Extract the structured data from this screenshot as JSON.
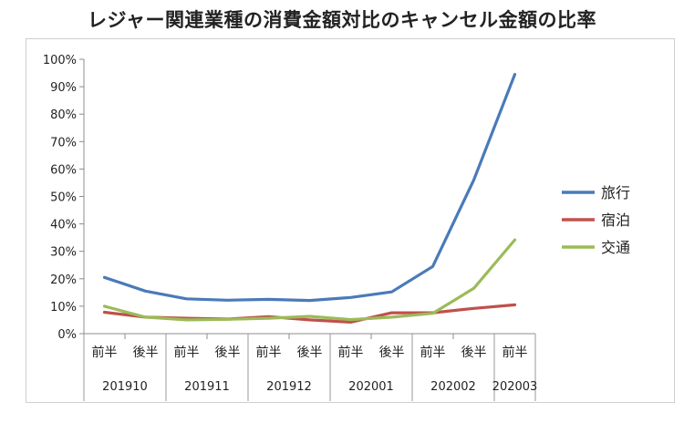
{
  "title": "レジャー関連業種の消費金額対比のキャンセル金額の比率",
  "colors": {
    "旅行": "#4a7ab8",
    "宿泊": "#c0504d",
    "交通": "#9bbb59",
    "axis": "#8c8c8c",
    "sep": "#9a9a9a"
  },
  "chart_data": {
    "type": "line",
    "title": "レジャー関連業種の消費金額対比のキャンセル金額の比率",
    "ylim": [
      0,
      100
    ],
    "y_ticks": [
      "0%",
      "10%",
      "20%",
      "30%",
      "40%",
      "50%",
      "60%",
      "70%",
      "80%",
      "90%",
      "100%"
    ],
    "half_labels": [
      "前半",
      "後半",
      "前半",
      "後半",
      "前半",
      "後半",
      "前半",
      "後半",
      "前半",
      "後半",
      "前半"
    ],
    "month_labels": [
      "201910",
      "201911",
      "201912",
      "202001",
      "202002",
      "202003"
    ],
    "grid": false,
    "legend_position": "right",
    "series": [
      {
        "name": "旅行",
        "values": [
          20.5,
          15.5,
          12.7,
          12.2,
          12.5,
          12.1,
          13.2,
          15.2,
          24.5,
          56,
          94.5
        ]
      },
      {
        "name": "宿泊",
        "values": [
          7.8,
          6.0,
          5.6,
          5.3,
          6.2,
          5.0,
          4.2,
          7.6,
          7.6,
          9.2,
          10.5
        ]
      },
      {
        "name": "交通",
        "values": [
          10,
          6.0,
          5.0,
          5.2,
          5.6,
          6.3,
          5.1,
          6.0,
          7.4,
          16.5,
          34.2
        ]
      }
    ]
  }
}
